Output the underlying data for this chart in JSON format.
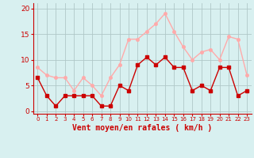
{
  "hours": [
    0,
    1,
    2,
    3,
    4,
    5,
    6,
    7,
    8,
    9,
    10,
    11,
    12,
    13,
    14,
    15,
    16,
    17,
    18,
    19,
    20,
    21,
    22,
    23
  ],
  "wind_mean": [
    6.5,
    3.0,
    1.0,
    3.0,
    3.0,
    3.0,
    3.0,
    1.0,
    1.0,
    5.0,
    4.0,
    9.0,
    10.5,
    9.0,
    10.5,
    8.5,
    8.5,
    4.0,
    5.0,
    4.0,
    8.5,
    8.5,
    3.0,
    4.0
  ],
  "wind_gust": [
    8.5,
    7.0,
    6.5,
    6.5,
    4.0,
    6.5,
    5.0,
    3.0,
    6.5,
    9.0,
    14.0,
    14.0,
    15.5,
    17.0,
    19.0,
    15.5,
    12.5,
    10.0,
    11.5,
    12.0,
    10.0,
    14.5,
    14.0,
    7.0
  ],
  "color_mean": "#cc0000",
  "color_gust": "#ffaaaa",
  "bg_color": "#d8f0f0",
  "grid_color": "#b0c8c8",
  "xlabel": "Vent moyen/en rafales ( km/h )",
  "ylabel_ticks": [
    0,
    5,
    10,
    15,
    20
  ],
  "ylim": [
    -0.5,
    21
  ],
  "xlim": [
    -0.5,
    23.5
  ]
}
